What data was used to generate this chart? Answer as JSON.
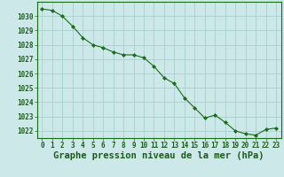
{
  "x": [
    0,
    1,
    2,
    3,
    4,
    5,
    6,
    7,
    8,
    9,
    10,
    11,
    12,
    13,
    14,
    15,
    16,
    17,
    18,
    19,
    20,
    21,
    22,
    23
  ],
  "y": [
    1030.5,
    1030.4,
    1030.0,
    1029.3,
    1028.5,
    1028.0,
    1027.8,
    1027.5,
    1027.3,
    1027.3,
    1027.1,
    1026.5,
    1025.7,
    1025.3,
    1024.3,
    1023.6,
    1022.9,
    1023.1,
    1022.6,
    1022.0,
    1021.8,
    1021.7,
    1022.1,
    1022.2
  ],
  "xlim": [
    -0.5,
    23.5
  ],
  "ylim": [
    1021.5,
    1031.0
  ],
  "yticks": [
    1022,
    1023,
    1024,
    1025,
    1026,
    1027,
    1028,
    1029,
    1030
  ],
  "xticks": [
    0,
    1,
    2,
    3,
    4,
    5,
    6,
    7,
    8,
    9,
    10,
    11,
    12,
    13,
    14,
    15,
    16,
    17,
    18,
    19,
    20,
    21,
    22,
    23
  ],
  "xlabel": "Graphe pression niveau de la mer (hPa)",
  "line_color": "#1a6b1a",
  "marker": "D",
  "marker_size": 2.0,
  "bg_color": "#cce8e8",
  "grid_color": "#aacece",
  "text_color": "#1a5c1a",
  "label_fontsize": 7.5,
  "tick_fontsize": 5.5
}
